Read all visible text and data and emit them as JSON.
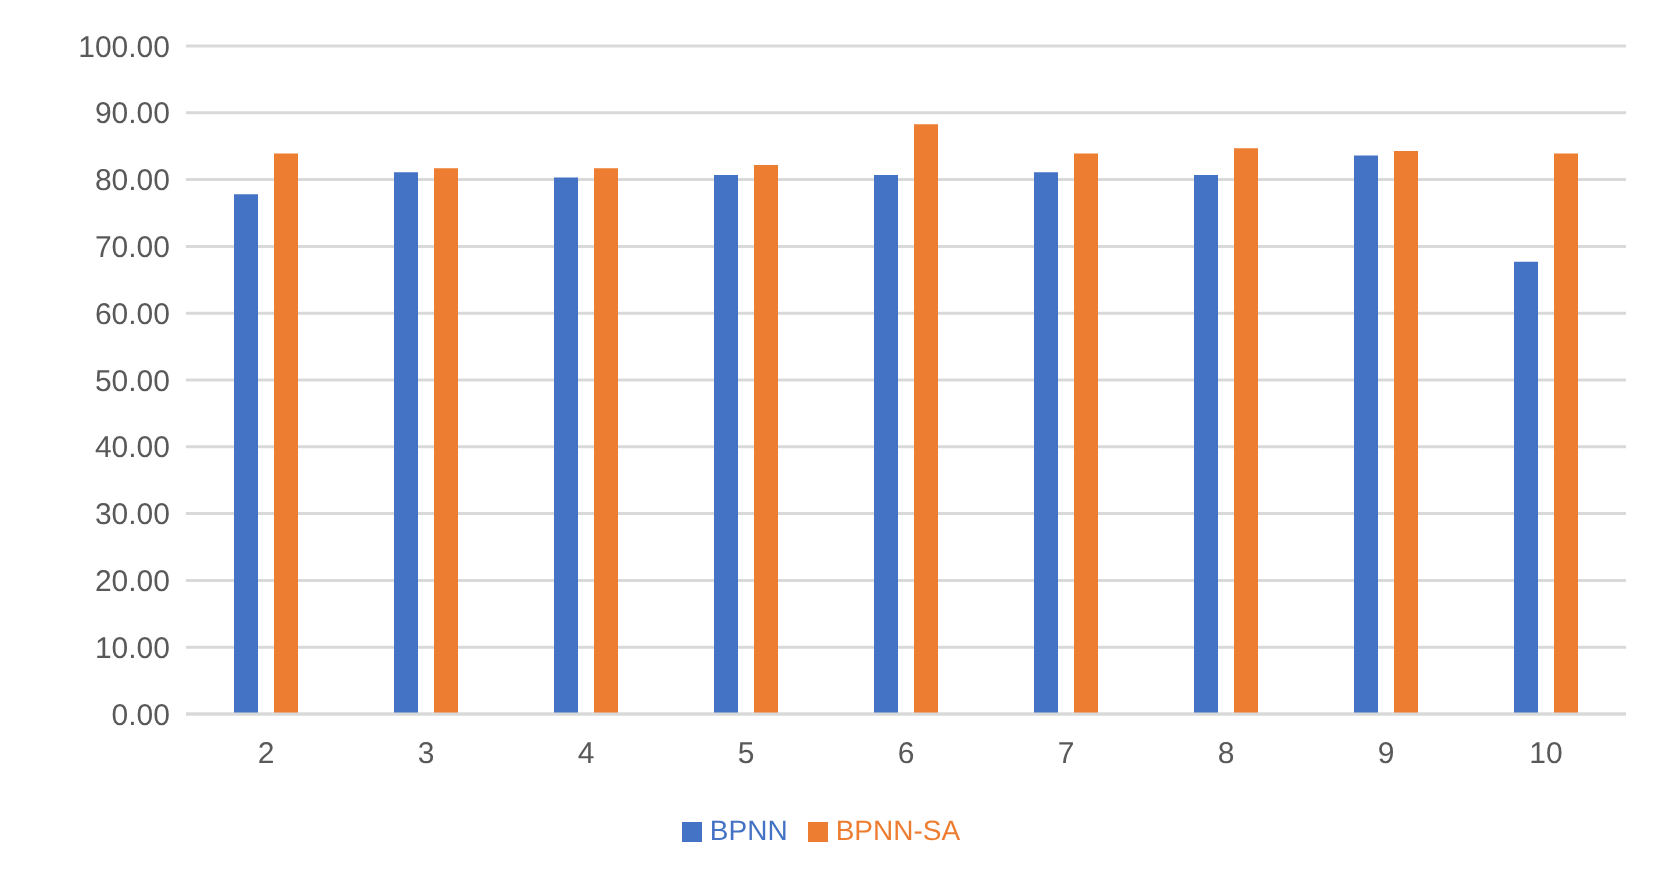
{
  "chart_data": {
    "type": "bar",
    "categories": [
      "2",
      "3",
      "4",
      "5",
      "6",
      "7",
      "8",
      "9",
      "10"
    ],
    "series": [
      {
        "name": "BPNN",
        "color": "#4472c4",
        "values": [
          77.8,
          81.1,
          80.3,
          80.7,
          80.7,
          81.1,
          80.7,
          83.6,
          67.7
        ]
      },
      {
        "name": "BPNN-SA",
        "color": "#ed7d31",
        "values": [
          83.9,
          81.7,
          81.7,
          82.2,
          88.3,
          83.9,
          84.7,
          84.3,
          83.9
        ]
      }
    ],
    "ylim": [
      0,
      100
    ],
    "yticks": [
      {
        "value": 0,
        "label": "0.00"
      },
      {
        "value": 10,
        "label": "10.00"
      },
      {
        "value": 20,
        "label": "20.00"
      },
      {
        "value": 30,
        "label": "30.00"
      },
      {
        "value": 40,
        "label": "40.00"
      },
      {
        "value": 50,
        "label": "50.00"
      },
      {
        "value": 60,
        "label": "60.00"
      },
      {
        "value": 70,
        "label": "70.00"
      },
      {
        "value": 80,
        "label": "80.00"
      },
      {
        "value": 90,
        "label": "90.00"
      },
      {
        "value": 100,
        "label": "100.00"
      }
    ],
    "grid": "y",
    "legend": "bottom"
  }
}
